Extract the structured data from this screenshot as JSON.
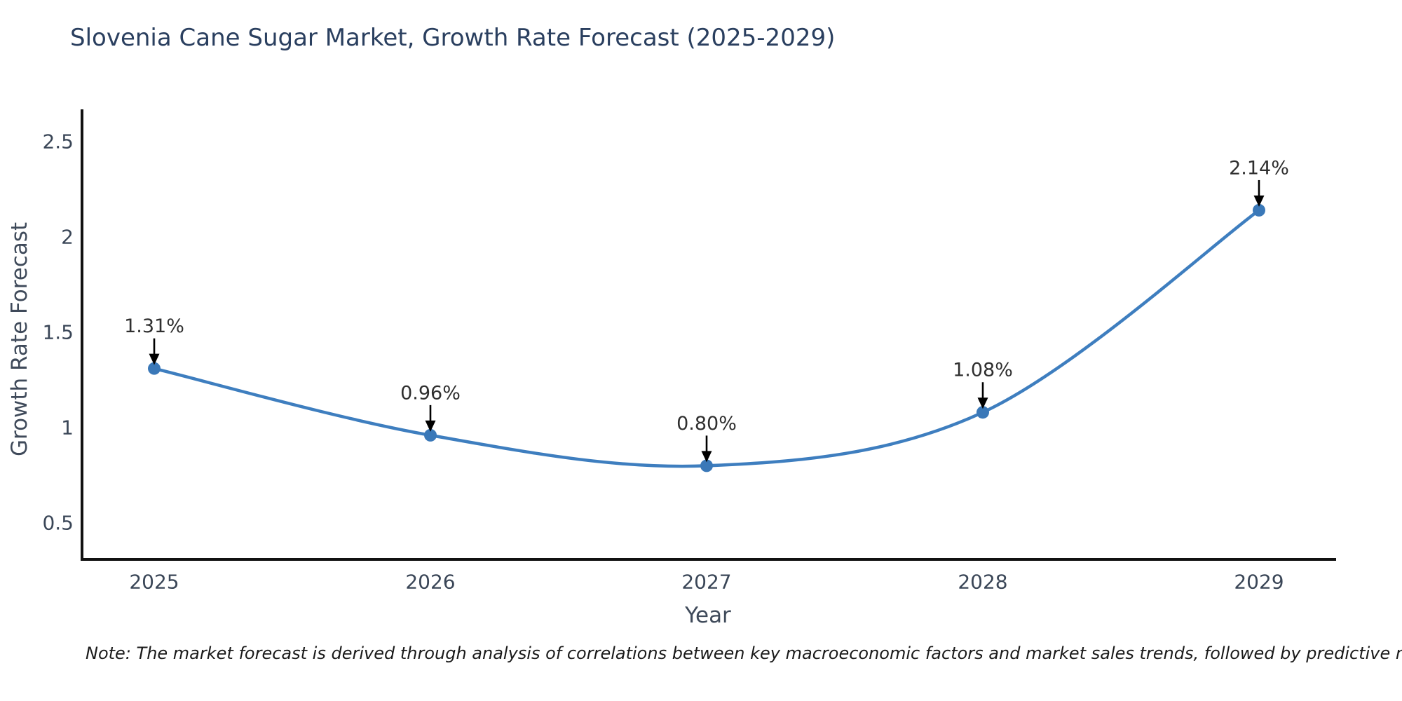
{
  "title": "Slovenia Cane Sugar Market, Growth Rate Forecast (2025-2029)",
  "note": "Note: The market forecast is derived through analysis of correlations between key macroeconomic factors and market sales trends, followed by predictive modeling to project future sales",
  "chart_data": {
    "type": "line",
    "title": "Slovenia Cane Sugar Market, Growth Rate Forecast (2025-2029)",
    "xlabel": "Year",
    "ylabel": "Growth Rate Forecast",
    "categories": [
      "2025",
      "2026",
      "2027",
      "2028",
      "2029"
    ],
    "values": [
      1.31,
      0.96,
      0.8,
      1.08,
      2.14
    ],
    "point_labels": [
      "1.31%",
      "0.96%",
      "0.80%",
      "1.08%",
      "2.14%"
    ],
    "yticks": [
      "0.5",
      "1",
      "1.5",
      "2",
      "2.5"
    ],
    "ytick_values": [
      0.5,
      1.0,
      1.5,
      2.0,
      2.5
    ],
    "ylim": [
      0.3,
      2.67
    ],
    "grid": false,
    "legend_position": "none",
    "line_style": "smooth-spline",
    "colors": {
      "line": "#3e7ebf",
      "marker": "#3a78b8",
      "axis": "#111111",
      "tick_label": "#3a4657",
      "annotation_text": "#2f2f2f",
      "annotation_arrow": "#000000",
      "title": "#2a3f5f",
      "axis_title": "#3f4a5a"
    }
  }
}
